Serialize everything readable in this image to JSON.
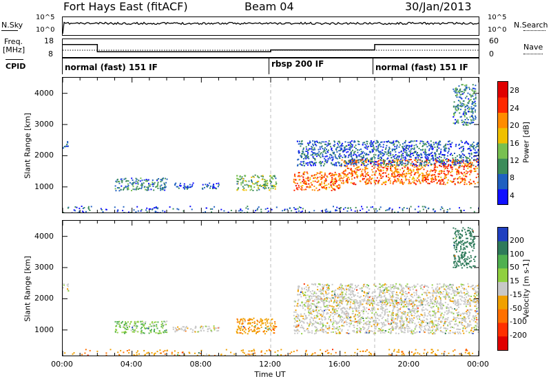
{
  "header": {
    "radar": "Fort Hays East (fitACF)",
    "beam": "Beam 04",
    "date": "30/Jan/2013"
  },
  "top_panels": {
    "nsky_label": "N.Sky",
    "nsearch_label": "N.Search",
    "count_ticks_left": [
      "10^5",
      "10^0"
    ],
    "count_ticks_right": [
      "10^5",
      "10^0"
    ],
    "freq_label_line1": "Freq.",
    "freq_label_line2": "[MHz]",
    "freq_ticks": [
      "18",
      "8"
    ],
    "nave_ticks": [
      "60",
      "0"
    ],
    "nave_label": "Nave",
    "cpid_label": "CPID",
    "modes": [
      {
        "label": "normal (fast) 151 IF",
        "start_hour": 0
      },
      {
        "label": "rbsp 200 IF",
        "start_hour": 12
      },
      {
        "label": "normal (fast) 151 IF",
        "start_hour": 18
      }
    ],
    "freq_steps": [
      {
        "from_hour": 0,
        "to_hour": 2,
        "mhz": 15
      },
      {
        "from_hour": 2,
        "to_hour": 12,
        "mhz": 11
      },
      {
        "from_hour": 12,
        "to_hour": 18,
        "mhz": 12
      },
      {
        "from_hour": 18,
        "to_hour": 24,
        "mhz": 15
      }
    ]
  },
  "chart_data": [
    {
      "type": "heatmap",
      "title": "Power",
      "ylabel": "Slant Range [km]",
      "xlabel": "Time UT",
      "x_ticks": [
        "00:00",
        "04:00",
        "08:00",
        "12:00",
        "16:00",
        "20:00",
        "00:00"
      ],
      "xlim_hours": [
        0,
        24
      ],
      "y_ticks": [
        "1000",
        "2000",
        "3000",
        "4000"
      ],
      "ylim": [
        180,
        4500
      ],
      "colorbar_label": "Power [dB]",
      "colorbar_ticks": [
        "4",
        "8",
        "12",
        "16",
        "20",
        "24",
        "28"
      ],
      "colorbar_range": [
        0,
        30
      ],
      "colorbar_colors": [
        "#1010ff",
        "#2060c0",
        "#3c8c5a",
        "#78c050",
        "#f0c000",
        "#ff8c00",
        "#ff2800",
        "#e00000"
      ],
      "regions": [
        {
          "t0": 0.0,
          "t1": 0.3,
          "r0": 2250,
          "r1": 2500,
          "level": 6
        },
        {
          "t0": 3.0,
          "t1": 6.0,
          "r0": 900,
          "r1": 1300,
          "level": 8
        },
        {
          "t0": 6.3,
          "t1": 7.5,
          "r0": 950,
          "r1": 1150,
          "level": 6
        },
        {
          "t0": 8.0,
          "t1": 9.0,
          "r0": 950,
          "r1": 1150,
          "level": 6
        },
        {
          "t0": 10.0,
          "t1": 12.3,
          "r0": 900,
          "r1": 1400,
          "level": 12
        },
        {
          "t0": 13.3,
          "t1": 16.0,
          "r0": 900,
          "r1": 1500,
          "level": 22
        },
        {
          "t0": 16.0,
          "t1": 24.0,
          "r0": 1100,
          "r1": 1900,
          "level": 22
        },
        {
          "t0": 13.5,
          "t1": 24.0,
          "r0": 1700,
          "r1": 2500,
          "level": 6
        },
        {
          "t0": 22.5,
          "t1": 23.8,
          "r0": 3000,
          "r1": 4300,
          "level": 8
        },
        {
          "t0": 0.0,
          "t1": 24.0,
          "r0": 180,
          "r1": 400,
          "level": 6
        }
      ]
    },
    {
      "type": "heatmap",
      "title": "Velocity",
      "ylabel": "Slant Range [km]",
      "xlabel": "Time UT",
      "x_ticks": [
        "00:00",
        "04:00",
        "08:00",
        "12:00",
        "16:00",
        "20:00",
        "00:00"
      ],
      "xlim_hours": [
        0,
        24
      ],
      "y_ticks": [
        "1000",
        "2000",
        "3000",
        "4000"
      ],
      "ylim": [
        180,
        4500
      ],
      "colorbar_label": "Velocity [m s-1]",
      "colorbar_ticks": [
        "200",
        "100",
        "50",
        "15",
        "-15",
        "-50",
        "-100",
        "-200"
      ],
      "colorbar_range": [
        -250,
        250
      ],
      "colorbar_colors": [
        "#2040c0",
        "#2e7a5a",
        "#50b050",
        "#90d040",
        "#c8c8c8",
        "#f0a000",
        "#ff7000",
        "#ff3000",
        "#e00000"
      ],
      "regions": [
        {
          "t0": 0.0,
          "t1": 0.3,
          "r0": 2250,
          "r1": 2500,
          "velocity": 0
        },
        {
          "t0": 3.0,
          "t1": 6.0,
          "r0": 900,
          "r1": 1300,
          "velocity": 30
        },
        {
          "t0": 6.3,
          "t1": 9.0,
          "r0": 950,
          "r1": 1150,
          "velocity": 0
        },
        {
          "t0": 10.0,
          "t1": 12.3,
          "r0": 900,
          "r1": 1400,
          "velocity": -40
        },
        {
          "t0": 13.3,
          "t1": 24.0,
          "r0": 900,
          "r1": 2000,
          "velocity": 0
        },
        {
          "t0": 13.5,
          "t1": 24.0,
          "r0": 1900,
          "r1": 2500,
          "velocity": 0
        },
        {
          "t0": 22.5,
          "t1": 23.8,
          "r0": 3000,
          "r1": 4300,
          "velocity": 120
        },
        {
          "t0": 0.0,
          "t1": 24.0,
          "r0": 180,
          "r1": 400,
          "velocity": -40
        }
      ]
    }
  ]
}
